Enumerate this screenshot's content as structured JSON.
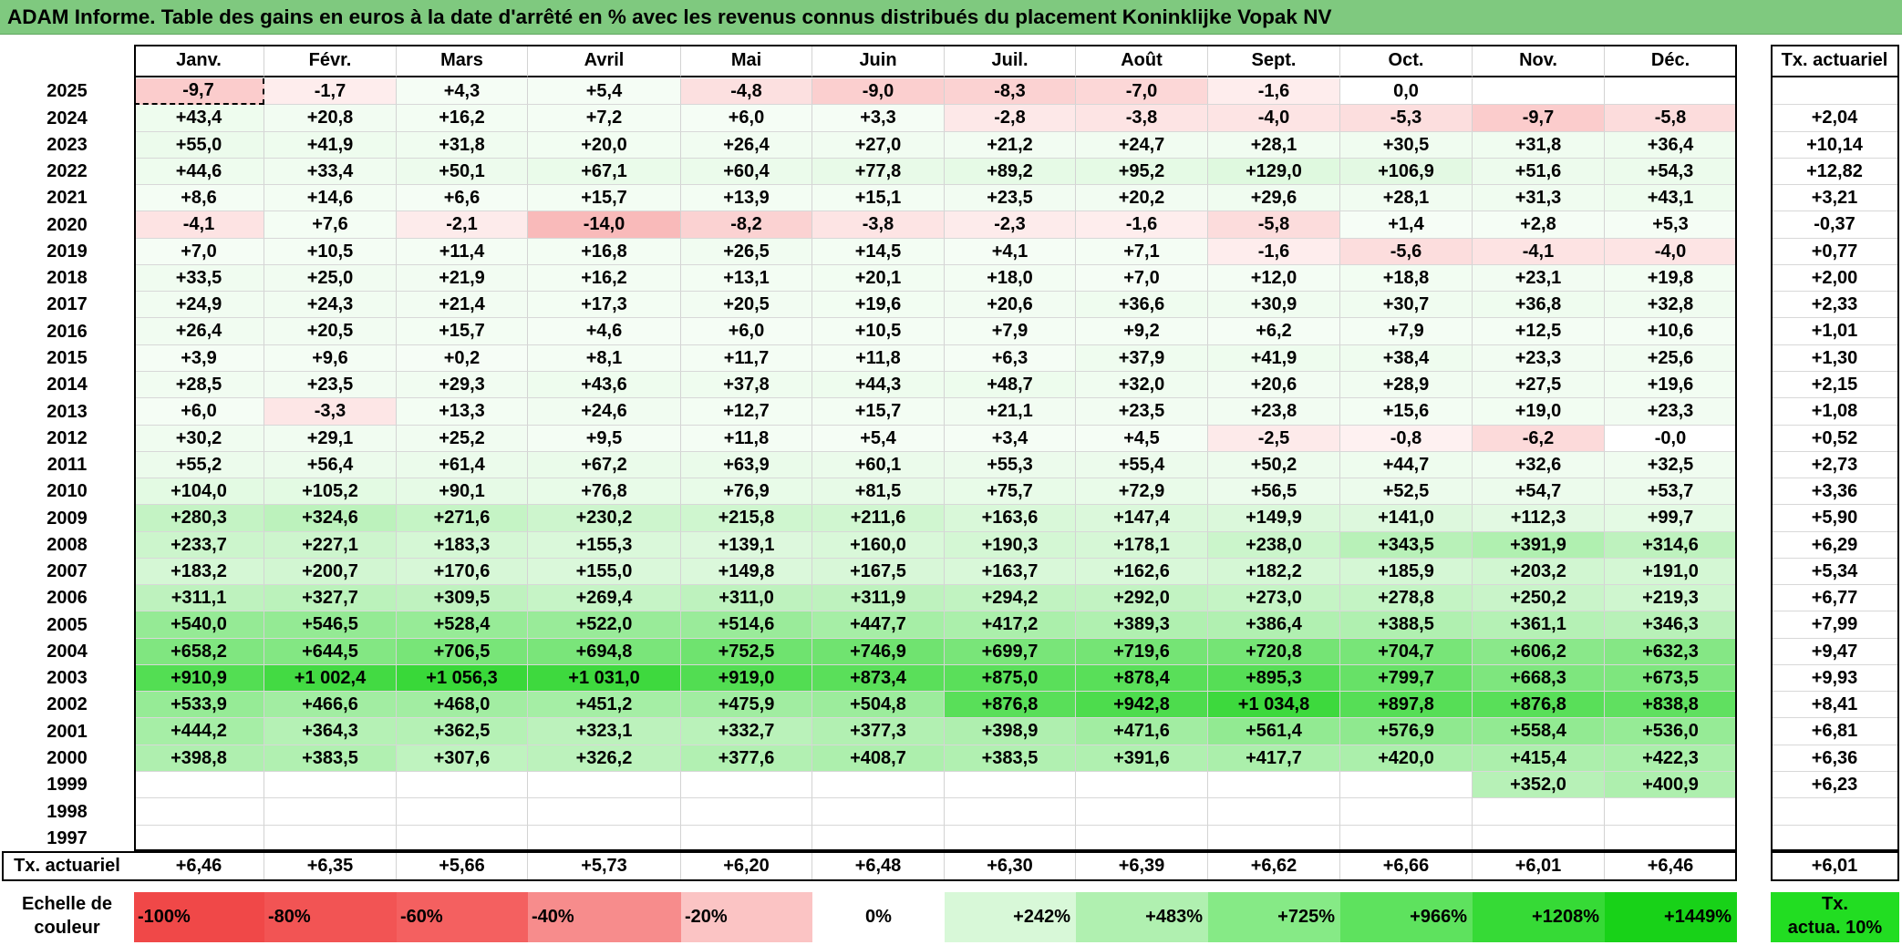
{
  "title": "ADAM Informe. Table des gains en euros à la date d'arrêté en % avec les revenus connus distribués du placement Koninklijke Vopak NV",
  "months": [
    "Janv.",
    "Févr.",
    "Mars",
    "Avril",
    "Mai",
    "Juin",
    "Juil.",
    "Août",
    "Sept.",
    "Oct.",
    "Nov.",
    "Déc."
  ],
  "annual_header": "Tx. actuariel",
  "rows": [
    {
      "year": "2025",
      "values": [
        "-9,7",
        "-1,7",
        "+4,3",
        "+5,4",
        "-4,8",
        "-9,0",
        "-8,3",
        "-7,0",
        "-1,6",
        "0,0",
        "",
        ""
      ],
      "rate": ""
    },
    {
      "year": "2024",
      "values": [
        "+43,4",
        "+20,8",
        "+16,2",
        "+7,2",
        "+6,0",
        "+3,3",
        "-2,8",
        "-3,8",
        "-4,0",
        "-5,3",
        "-9,7",
        "-5,8"
      ],
      "rate": "+2,04"
    },
    {
      "year": "2023",
      "values": [
        "+55,0",
        "+41,9",
        "+31,8",
        "+20,0",
        "+26,4",
        "+27,0",
        "+21,2",
        "+24,7",
        "+28,1",
        "+30,5",
        "+31,8",
        "+36,4"
      ],
      "rate": "+10,14"
    },
    {
      "year": "2022",
      "values": [
        "+44,6",
        "+33,4",
        "+50,1",
        "+67,1",
        "+60,4",
        "+77,8",
        "+89,2",
        "+95,2",
        "+129,0",
        "+106,9",
        "+51,6",
        "+54,3"
      ],
      "rate": "+12,82"
    },
    {
      "year": "2021",
      "values": [
        "+8,6",
        "+14,6",
        "+6,6",
        "+15,7",
        "+13,9",
        "+15,1",
        "+23,5",
        "+20,2",
        "+29,6",
        "+28,1",
        "+31,3",
        "+43,1"
      ],
      "rate": "+3,21"
    },
    {
      "year": "2020",
      "values": [
        "-4,1",
        "+7,6",
        "-2,1",
        "-14,0",
        "-8,2",
        "-3,8",
        "-2,3",
        "-1,6",
        "-5,8",
        "+1,4",
        "+2,8",
        "+5,3"
      ],
      "rate": "-0,37"
    },
    {
      "year": "2019",
      "values": [
        "+7,0",
        "+10,5",
        "+11,4",
        "+16,8",
        "+26,5",
        "+14,5",
        "+4,1",
        "+7,1",
        "-1,6",
        "-5,6",
        "-4,1",
        "-4,0"
      ],
      "rate": "+0,77"
    },
    {
      "year": "2018",
      "values": [
        "+33,5",
        "+25,0",
        "+21,9",
        "+16,2",
        "+13,1",
        "+20,1",
        "+18,0",
        "+7,0",
        "+12,0",
        "+18,8",
        "+23,1",
        "+19,8"
      ],
      "rate": "+2,00"
    },
    {
      "year": "2017",
      "values": [
        "+24,9",
        "+24,3",
        "+21,4",
        "+17,3",
        "+20,5",
        "+19,6",
        "+20,6",
        "+36,6",
        "+30,9",
        "+30,7",
        "+36,8",
        "+32,8"
      ],
      "rate": "+2,33"
    },
    {
      "year": "2016",
      "values": [
        "+26,4",
        "+20,5",
        "+15,7",
        "+4,6",
        "+6,0",
        "+10,5",
        "+7,9",
        "+9,2",
        "+6,2",
        "+7,9",
        "+12,5",
        "+10,6"
      ],
      "rate": "+1,01"
    },
    {
      "year": "2015",
      "values": [
        "+3,9",
        "+9,6",
        "+0,2",
        "+8,1",
        "+11,7",
        "+11,8",
        "+6,3",
        "+37,9",
        "+41,9",
        "+38,4",
        "+23,3",
        "+25,6"
      ],
      "rate": "+1,30"
    },
    {
      "year": "2014",
      "values": [
        "+28,5",
        "+23,5",
        "+29,3",
        "+43,6",
        "+37,8",
        "+44,3",
        "+48,7",
        "+32,0",
        "+20,6",
        "+28,9",
        "+27,5",
        "+19,6"
      ],
      "rate": "+2,15"
    },
    {
      "year": "2013",
      "values": [
        "+6,0",
        "-3,3",
        "+13,3",
        "+24,6",
        "+12,7",
        "+15,7",
        "+21,1",
        "+23,5",
        "+23,8",
        "+15,6",
        "+19,0",
        "+23,3"
      ],
      "rate": "+1,08"
    },
    {
      "year": "2012",
      "values": [
        "+30,2",
        "+29,1",
        "+25,2",
        "+9,5",
        "+11,8",
        "+5,4",
        "+3,4",
        "+4,5",
        "-2,5",
        "-0,8",
        "-6,2",
        "-0,0"
      ],
      "rate": "+0,52"
    },
    {
      "year": "2011",
      "values": [
        "+55,2",
        "+56,4",
        "+61,4",
        "+67,2",
        "+63,9",
        "+60,1",
        "+55,3",
        "+55,4",
        "+50,2",
        "+44,7",
        "+32,6",
        "+32,5"
      ],
      "rate": "+2,73"
    },
    {
      "year": "2010",
      "values": [
        "+104,0",
        "+105,2",
        "+90,1",
        "+76,8",
        "+76,9",
        "+81,5",
        "+75,7",
        "+72,9",
        "+56,5",
        "+52,5",
        "+54,7",
        "+53,7"
      ],
      "rate": "+3,36"
    },
    {
      "year": "2009",
      "values": [
        "+280,3",
        "+324,6",
        "+271,6",
        "+230,2",
        "+215,8",
        "+211,6",
        "+163,6",
        "+147,4",
        "+149,9",
        "+141,0",
        "+112,3",
        "+99,7"
      ],
      "rate": "+5,90"
    },
    {
      "year": "2008",
      "values": [
        "+233,7",
        "+227,1",
        "+183,3",
        "+155,3",
        "+139,1",
        "+160,0",
        "+190,3",
        "+178,1",
        "+238,0",
        "+343,5",
        "+391,9",
        "+314,6"
      ],
      "rate": "+6,29"
    },
    {
      "year": "2007",
      "values": [
        "+183,2",
        "+200,7",
        "+170,6",
        "+155,0",
        "+149,8",
        "+167,5",
        "+163,7",
        "+162,6",
        "+182,2",
        "+185,9",
        "+203,2",
        "+191,0"
      ],
      "rate": "+5,34"
    },
    {
      "year": "2006",
      "values": [
        "+311,1",
        "+327,7",
        "+309,5",
        "+269,4",
        "+311,0",
        "+311,9",
        "+294,2",
        "+292,0",
        "+273,0",
        "+278,8",
        "+250,2",
        "+219,3"
      ],
      "rate": "+6,77"
    },
    {
      "year": "2005",
      "values": [
        "+540,0",
        "+546,5",
        "+528,4",
        "+522,0",
        "+514,6",
        "+447,7",
        "+417,2",
        "+389,3",
        "+386,4",
        "+388,5",
        "+361,1",
        "+346,3"
      ],
      "rate": "+7,99"
    },
    {
      "year": "2004",
      "values": [
        "+658,2",
        "+644,5",
        "+706,5",
        "+694,8",
        "+752,5",
        "+746,9",
        "+699,7",
        "+719,6",
        "+720,8",
        "+704,7",
        "+606,2",
        "+632,3"
      ],
      "rate": "+9,47"
    },
    {
      "year": "2003",
      "values": [
        "+910,9",
        "+1 002,4",
        "+1 056,3",
        "+1 031,0",
        "+919,0",
        "+873,4",
        "+875,0",
        "+878,4",
        "+895,3",
        "+799,7",
        "+668,3",
        "+673,5"
      ],
      "rate": "+9,93"
    },
    {
      "year": "2002",
      "values": [
        "+533,9",
        "+466,6",
        "+468,0",
        "+451,2",
        "+475,9",
        "+504,8",
        "+876,8",
        "+942,8",
        "+1 034,8",
        "+897,8",
        "+876,8",
        "+838,8"
      ],
      "rate": "+8,41"
    },
    {
      "year": "2001",
      "values": [
        "+444,2",
        "+364,3",
        "+362,5",
        "+323,1",
        "+332,7",
        "+377,3",
        "+398,9",
        "+471,6",
        "+561,4",
        "+576,9",
        "+558,4",
        "+536,0"
      ],
      "rate": "+6,81"
    },
    {
      "year": "2000",
      "values": [
        "+398,8",
        "+383,5",
        "+307,6",
        "+326,2",
        "+377,6",
        "+408,7",
        "+383,5",
        "+391,6",
        "+417,7",
        "+420,0",
        "+415,4",
        "+422,3"
      ],
      "rate": "+6,36"
    },
    {
      "year": "1999",
      "values": [
        "",
        "",
        "",
        "",
        "",
        "",
        "",
        "",
        "",
        "",
        "+352,0",
        "+400,9"
      ],
      "rate": "+6,23"
    },
    {
      "year": "1998",
      "values": [
        "",
        "",
        "",
        "",
        "",
        "",
        "",
        "",
        "",
        "",
        "",
        ""
      ],
      "rate": ""
    },
    {
      "year": "1997",
      "values": [
        "",
        "",
        "",
        "",
        "",
        "",
        "",
        "",
        "",
        "",
        "",
        ""
      ],
      "rate": ""
    }
  ],
  "footer": {
    "label": "Tx. actuariel",
    "values": [
      "+6,46",
      "+6,35",
      "+5,66",
      "+5,73",
      "+6,20",
      "+6,48",
      "+6,30",
      "+6,39",
      "+6,62",
      "+6,66",
      "+6,01",
      "+6,46"
    ],
    "total": "+6,01"
  },
  "scale": {
    "label_line1": "Echelle de",
    "label_line2": "couleur",
    "items": [
      {
        "text": "-100%",
        "color": "#f04848"
      },
      {
        "text": "-80%",
        "color": "#f25454"
      },
      {
        "text": "-60%",
        "color": "#f46060"
      },
      {
        "text": "-40%",
        "color": "#f78c8c"
      },
      {
        "text": "-20%",
        "color": "#fbc4c4"
      },
      {
        "text": "0%",
        "color": "#ffffff"
      },
      {
        "text": "+242%",
        "color": "#d8f8d8"
      },
      {
        "text": "+483%",
        "color": "#b0f0b0"
      },
      {
        "text": "+725%",
        "color": "#86ea86"
      },
      {
        "text": "+966%",
        "color": "#5ee25e"
      },
      {
        "text": "+1208%",
        "color": "#36da36"
      },
      {
        "text": "+1449%",
        "color": "#18d218"
      }
    ],
    "rate_line1": "Tx.",
    "rate_line2": "actua. 10%",
    "rate_color": "#22dd22"
  },
  "colors": {
    "title_bg": "#7fc97f",
    "positive_max": "#18d218",
    "negative_max": "#f04848"
  }
}
